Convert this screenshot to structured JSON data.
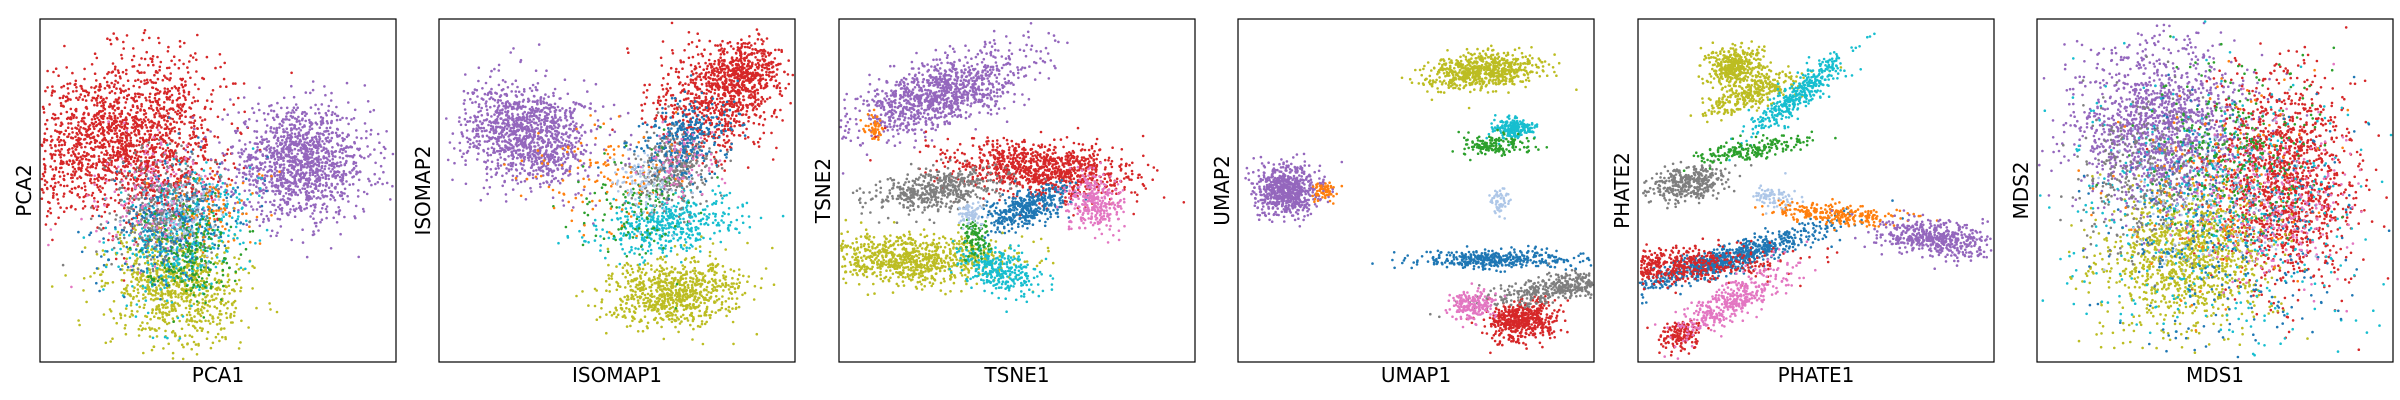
{
  "figure": {
    "panels_count": 6
  },
  "palette": {
    "purple": "#9467bd",
    "red": "#d62728",
    "olive": "#bcbd22",
    "cyan": "#17becf",
    "gray": "#7f7f7f",
    "blue": "#1f77b4",
    "green": "#2ca02c",
    "orange": "#ff7f0e",
    "pink": "#e377c2",
    "lightblue": "#aec7e8"
  },
  "chart_data": [
    {
      "type": "scatter",
      "xlabel": "PCA1",
      "ylabel": "PCA2",
      "grid": false,
      "xlim": [
        0,
        100
      ],
      "ylim": [
        0,
        100
      ],
      "ticks": "none",
      "series": [
        {
          "color": "#d62728",
          "clusters": [
            [
              20,
              67,
              9,
              15,
              -55,
              1400
            ],
            [
              35,
              55,
              8,
              10,
              -50,
              500
            ]
          ]
        },
        {
          "color": "#9467bd",
          "clusters": [
            [
              73,
              58,
              10,
              8,
              0,
              1300
            ]
          ]
        },
        {
          "color": "#bcbd22",
          "clusters": [
            [
              38,
              22,
              9,
              8,
              -20,
              900
            ]
          ]
        },
        {
          "color": "#17becf",
          "clusters": [
            [
              41,
              38,
              8,
              10,
              -40,
              450
            ]
          ]
        },
        {
          "color": "#1f77b4",
          "clusters": [
            [
              37,
              40,
              7,
              10,
              -45,
              350
            ]
          ]
        },
        {
          "color": "#7f7f7f",
          "clusters": [
            [
              34,
              45,
              7,
              9,
              -50,
              300
            ]
          ]
        },
        {
          "color": "#2ca02c",
          "clusters": [
            [
              42,
              33,
              6,
              7,
              0,
              200
            ]
          ]
        },
        {
          "color": "#e377c2",
          "clusters": [
            [
              30,
              50,
              8,
              10,
              -50,
              150
            ]
          ]
        },
        {
          "color": "#ff7f0e",
          "clusters": [
            [
              50,
              45,
              8,
              6,
              0,
              80
            ]
          ]
        },
        {
          "color": "#aec7e8",
          "clusters": [
            [
              40,
              42,
              6,
              6,
              0,
              80
            ]
          ]
        }
      ]
    },
    {
      "type": "scatter",
      "xlabel": "ISOMAP1",
      "ylabel": "ISOMAP2",
      "grid": false,
      "xlim": [
        0,
        100
      ],
      "ylim": [
        0,
        100
      ],
      "ticks": "none",
      "series": [
        {
          "color": "#9467bd",
          "clusters": [
            [
              25,
              66,
              9,
              7,
              -15,
              1200
            ]
          ]
        },
        {
          "color": "#d62728",
          "clusters": [
            [
              78,
              76,
              8,
              9,
              -60,
              700
            ],
            [
              86,
              84,
              5,
              5,
              0,
              400
            ]
          ]
        },
        {
          "color": "#bcbd22",
          "clusters": [
            [
              66,
              20,
              5,
              9,
              -85,
              800
            ]
          ]
        },
        {
          "color": "#17becf",
          "clusters": [
            [
              64,
              40,
              4,
              10,
              -80,
              450
            ]
          ]
        },
        {
          "color": "#7f7f7f",
          "clusters": [
            [
              66,
              56,
              5,
              6,
              -45,
              350
            ]
          ]
        },
        {
          "color": "#1f77b4",
          "clusters": [
            [
              70,
              65,
              5,
              7,
              -60,
              300
            ]
          ]
        },
        {
          "color": "#2ca02c",
          "clusters": [
            [
              56,
              45,
              8,
              8,
              0,
              120
            ]
          ]
        },
        {
          "color": "#ff7f0e",
          "clusters": [
            [
              45,
              55,
              10,
              8,
              0,
              120
            ]
          ]
        },
        {
          "color": "#aec7e8",
          "clusters": [
            [
              58,
              52,
              5,
              5,
              0,
              100
            ]
          ]
        },
        {
          "color": "#e377c2",
          "clusters": [
            [
              68,
              58,
              5,
              5,
              0,
              80
            ]
          ]
        }
      ]
    },
    {
      "type": "scatter",
      "xlabel": "TSNE1",
      "ylabel": "TSNE2",
      "grid": false,
      "xlim": [
        0,
        100
      ],
      "ylim": [
        0,
        100
      ],
      "ticks": "none",
      "series": [
        {
          "color": "#9467bd",
          "clusters": [
            [
              28,
              78,
              13,
              4.5,
              20,
              1100
            ]
          ]
        },
        {
          "color": "#ff7f0e",
          "clusters": [
            [
              10,
              68,
              1.5,
              2,
              0,
              50
            ]
          ]
        },
        {
          "color": "#d62728",
          "clusters": [
            [
              57,
              56,
              13,
              4,
              -5,
              1000
            ]
          ]
        },
        {
          "color": "#7f7f7f",
          "clusters": [
            [
              28,
              50,
              9,
              3,
              8,
              500
            ]
          ]
        },
        {
          "color": "#1f77b4",
          "clusters": [
            [
              53,
              45,
              7,
              2.5,
              25,
              400
            ]
          ]
        },
        {
          "color": "#e377c2",
          "clusters": [
            [
              72,
              46,
              4,
              4,
              -30,
              300
            ]
          ]
        },
        {
          "color": "#bcbd22",
          "clusters": [
            [
              20,
              30,
              14,
              3.5,
              0,
              900
            ]
          ]
        },
        {
          "color": "#17becf",
          "clusters": [
            [
              45,
              27,
              6,
              3,
              -20,
              300
            ]
          ]
        },
        {
          "color": "#2ca02c",
          "clusters": [
            [
              38,
              36,
              2,
              3,
              0,
              100
            ]
          ]
        },
        {
          "color": "#aec7e8",
          "clusters": [
            [
              37,
              43,
              2,
              2,
              0,
              80
            ]
          ]
        }
      ]
    },
    {
      "type": "scatter",
      "xlabel": "UMAP1",
      "ylabel": "UMAP2",
      "grid": false,
      "xlim": [
        0,
        100
      ],
      "ylim": [
        0,
        100
      ],
      "ticks": "none",
      "series": [
        {
          "color": "#9467bd",
          "clusters": [
            [
              14,
              50,
              4.5,
              3.5,
              0,
              700
            ]
          ]
        },
        {
          "color": "#ff7f0e",
          "clusters": [
            [
              24,
              50,
              1.5,
              1.5,
              0,
              60
            ]
          ]
        },
        {
          "color": "#bcbd22",
          "clusters": [
            [
              69,
              85,
              2.5,
              8,
              -85,
              700
            ]
          ]
        },
        {
          "color": "#17becf",
          "clusters": [
            [
              77,
              68,
              3,
              1.5,
              0,
              200
            ]
          ]
        },
        {
          "color": "#2ca02c",
          "clusters": [
            [
              73,
              63,
              1.5,
              5,
              -90,
              150
            ]
          ]
        },
        {
          "color": "#aec7e8",
          "clusters": [
            [
              73,
              47,
              1.5,
              2,
              0,
              60
            ]
          ]
        },
        {
          "color": "#1f77b4",
          "clusters": [
            [
              72,
              30,
              1.3,
              12,
              -90,
              400
            ]
          ]
        },
        {
          "color": "#d62728",
          "clusters": [
            [
              80,
              12,
              5,
              3,
              10,
              500
            ]
          ]
        },
        {
          "color": "#7f7f7f",
          "clusters": [
            [
              92,
              22,
              1.8,
              11,
              -80,
              500
            ]
          ]
        },
        {
          "color": "#e377c2",
          "clusters": [
            [
              66,
              16,
              3,
              2.2,
              0,
              200
            ]
          ]
        }
      ]
    },
    {
      "type": "scatter",
      "xlabel": "PHATE1",
      "ylabel": "PHATE2",
      "grid": false,
      "xlim": [
        0,
        100
      ],
      "ylim": [
        0,
        100
      ],
      "ticks": "none",
      "series": [
        {
          "color": "#bcbd22",
          "clusters": [
            [
              27,
              86,
              4,
              3,
              0,
              400
            ],
            [
              32,
              78,
              2,
              7,
              -70,
              300
            ]
          ]
        },
        {
          "color": "#17becf",
          "clusters": [
            [
              45,
              78,
              9,
              2,
              40,
              400
            ]
          ]
        },
        {
          "color": "#7f7f7f",
          "clusters": [
            [
              14,
              52,
              5,
              2.5,
              10,
              350
            ]
          ]
        },
        {
          "color": "#2ca02c",
          "clusters": [
            [
              32,
              62,
              1.5,
              8,
              -80,
              200
            ]
          ]
        },
        {
          "color": "#1f77b4",
          "clusters": [
            [
              25,
              30,
              2,
              15,
              -72,
              800
            ]
          ]
        },
        {
          "color": "#d62728",
          "clusters": [
            [
              8,
              28,
              2.5,
              15,
              -88,
              600
            ],
            [
              12,
              8,
              3,
              2,
              0,
              150
            ]
          ]
        },
        {
          "color": "#e377c2",
          "clusters": [
            [
              27,
              18,
              2.5,
              9,
              -60,
              400
            ]
          ]
        },
        {
          "color": "#ff7f0e",
          "clusters": [
            [
              55,
              43,
              10,
              1.5,
              -5,
              250
            ]
          ]
        },
        {
          "color": "#9467bd",
          "clusters": [
            [
              83,
              36,
              8,
              2.5,
              -8,
              500
            ]
          ]
        },
        {
          "color": "#aec7e8",
          "clusters": [
            [
              38,
              48,
              3,
              2,
              0,
              80
            ]
          ]
        }
      ]
    },
    {
      "type": "scatter",
      "xlabel": "MDS1",
      "ylabel": "MDS2",
      "grid": false,
      "xlim": [
        0,
        100
      ],
      "ylim": [
        0,
        100
      ],
      "ticks": "none",
      "series": [
        {
          "color": "#9467bd",
          "clusters": [
            [
              35,
              68,
              12,
              12,
              0,
              1500
            ]
          ]
        },
        {
          "color": "#d62728",
          "clusters": [
            [
              70,
              52,
              10,
              15,
              0,
              1400
            ]
          ]
        },
        {
          "color": "#bcbd22",
          "clusters": [
            [
              42,
              30,
              12,
              10,
              0,
              1100
            ]
          ]
        },
        {
          "color": "#17becf",
          "clusters": [
            [
              50,
              45,
              22,
              20,
              0,
              500
            ]
          ]
        },
        {
          "color": "#1f77b4",
          "clusters": [
            [
              55,
              40,
              18,
              18,
              0,
              350
            ]
          ]
        },
        {
          "color": "#7f7f7f",
          "clusters": [
            [
              30,
              55,
              10,
              12,
              0,
              300
            ]
          ]
        },
        {
          "color": "#2ca02c",
          "clusters": [
            [
              55,
              60,
              12,
              12,
              0,
              300
            ]
          ]
        },
        {
          "color": "#e377c2",
          "clusters": [
            [
              65,
              45,
              12,
              12,
              0,
              250
            ]
          ]
        },
        {
          "color": "#ff7f0e",
          "clusters": [
            [
              50,
              50,
              15,
              15,
              0,
              150
            ]
          ]
        },
        {
          "color": "#aec7e8",
          "clusters": [
            [
              48,
              48,
              12,
              12,
              0,
              120
            ]
          ]
        }
      ]
    }
  ]
}
